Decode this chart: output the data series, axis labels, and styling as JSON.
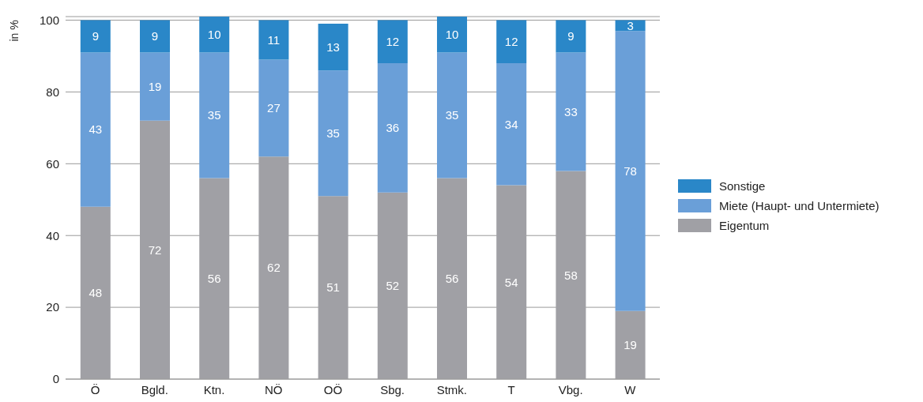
{
  "chart_data": {
    "type": "bar",
    "stacked": true,
    "ylabel": "in %",
    "categories": [
      "Ö",
      "Bgld.",
      "Ktn.",
      "NÖ",
      "OÖ",
      "Sbg.",
      "Stmk.",
      "T",
      "Vbg.",
      "W"
    ],
    "series": [
      {
        "name": "Eigentum",
        "color": "#a0a0a5",
        "values": [
          48,
          72,
          56,
          62,
          51,
          52,
          56,
          54,
          58,
          19
        ]
      },
      {
        "name": "Miete (Haupt- und Untermiete)",
        "color": "#6a9fd8",
        "values": [
          43,
          19,
          35,
          27,
          35,
          36,
          35,
          34,
          33,
          78
        ]
      },
      {
        "name": "Sonstige",
        "color": "#2a87c8",
        "values": [
          9,
          9,
          10,
          11,
          13,
          12,
          10,
          12,
          9,
          3
        ]
      }
    ],
    "ylim": [
      0,
      101
    ],
    "yticks": [
      0,
      20,
      40,
      60,
      80,
      100
    ],
    "grid": "y",
    "legend": "right",
    "data_labels": true
  }
}
